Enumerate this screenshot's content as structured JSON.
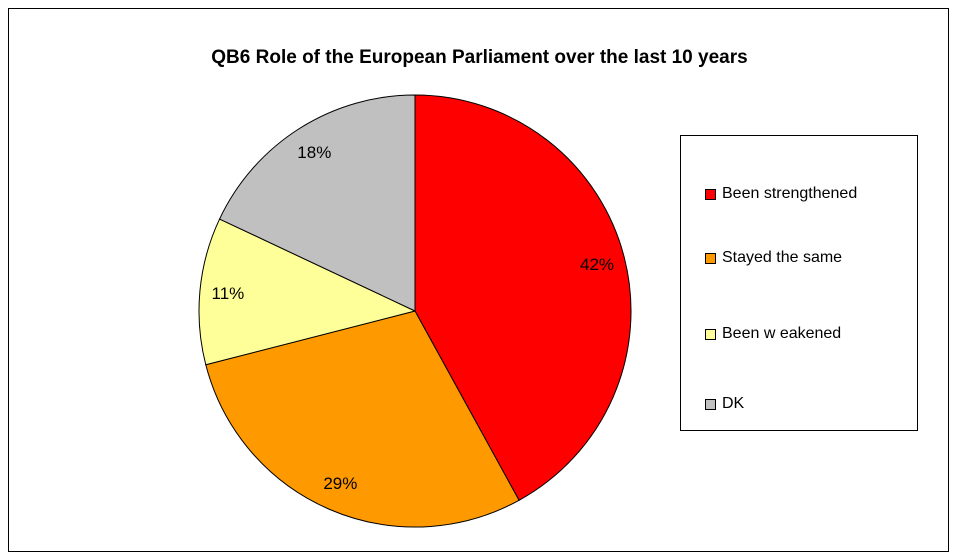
{
  "chart_data": {
    "type": "pie",
    "title": "QB6 Role of the European Parliament over the last 10 years",
    "categories": [
      "Been strengthened",
      "Stayed the same",
      "Been w eakened",
      "DK"
    ],
    "values": [
      42,
      29,
      11,
      18
    ],
    "labels": [
      "42%",
      "29%",
      "11%",
      "18%"
    ],
    "colors": [
      "#ff0000",
      "#ff9900",
      "#ffff99",
      "#c0c0c0"
    ],
    "legend_position": "right"
  }
}
